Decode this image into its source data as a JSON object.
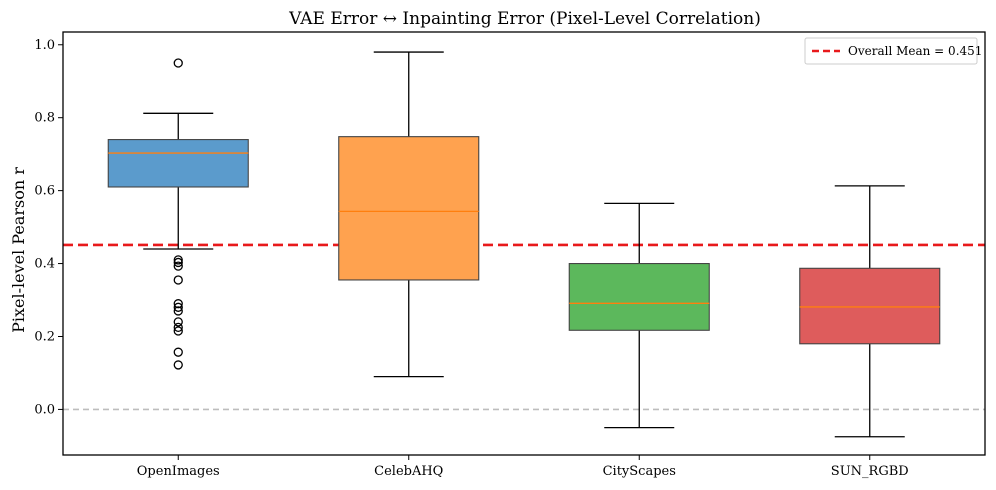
{
  "chart_data": {
    "type": "boxplot",
    "title": "VAE Error ↔ Inpainting Error (Pixel-Level Correlation)",
    "xlabel": "",
    "ylabel": "Pixel-level Pearson r",
    "ylim": [
      -0.125,
      1.035
    ],
    "yticks": [
      0.0,
      0.2,
      0.4,
      0.6,
      0.8,
      1.0
    ],
    "ytick_labels": [
      "0.0",
      "0.2",
      "0.4",
      "0.6",
      "0.8",
      "1.0"
    ],
    "categories": [
      "OpenImages",
      "CelebAHQ",
      "CityScapes",
      "SUN_RGBD"
    ],
    "boxes": [
      {
        "name": "OpenImages",
        "whisker_low": 0.44,
        "q1": 0.61,
        "median": 0.703,
        "q3": 0.74,
        "whisker_high": 0.812,
        "color": "#5b9bcc",
        "outliers": [
          0.95,
          0.41,
          0.403,
          0.393,
          0.355,
          0.29,
          0.28,
          0.27,
          0.24,
          0.225,
          0.215,
          0.157,
          0.122
        ]
      },
      {
        "name": "CelebAHQ",
        "whisker_low": 0.09,
        "q1": 0.355,
        "median": 0.543,
        "q3": 0.748,
        "whisker_high": 0.98,
        "color": "#ffa24f",
        "outliers": []
      },
      {
        "name": "CityScapes",
        "whisker_low": -0.05,
        "q1": 0.217,
        "median": 0.291,
        "q3": 0.4,
        "whisker_high": 0.565,
        "color": "#5cb85c",
        "outliers": []
      },
      {
        "name": "SUN_RGBD",
        "whisker_low": -0.075,
        "q1": 0.18,
        "median": 0.281,
        "q3": 0.387,
        "whisker_high": 0.613,
        "color": "#de5c5c",
        "outliers": []
      }
    ],
    "reference_lines": [
      {
        "name": "overall-mean",
        "value": 0.451,
        "color": "#e8191b",
        "style": "dashed",
        "label": "Overall Mean = 0.451"
      },
      {
        "name": "zero-line",
        "value": 0.0,
        "color": "#bdbdbd",
        "style": "dashed",
        "label": ""
      }
    ],
    "median_color": "#ff7f0e",
    "legend": {
      "position": "top-right",
      "entries": [
        "Overall Mean = 0.451"
      ]
    },
    "grid": false
  }
}
